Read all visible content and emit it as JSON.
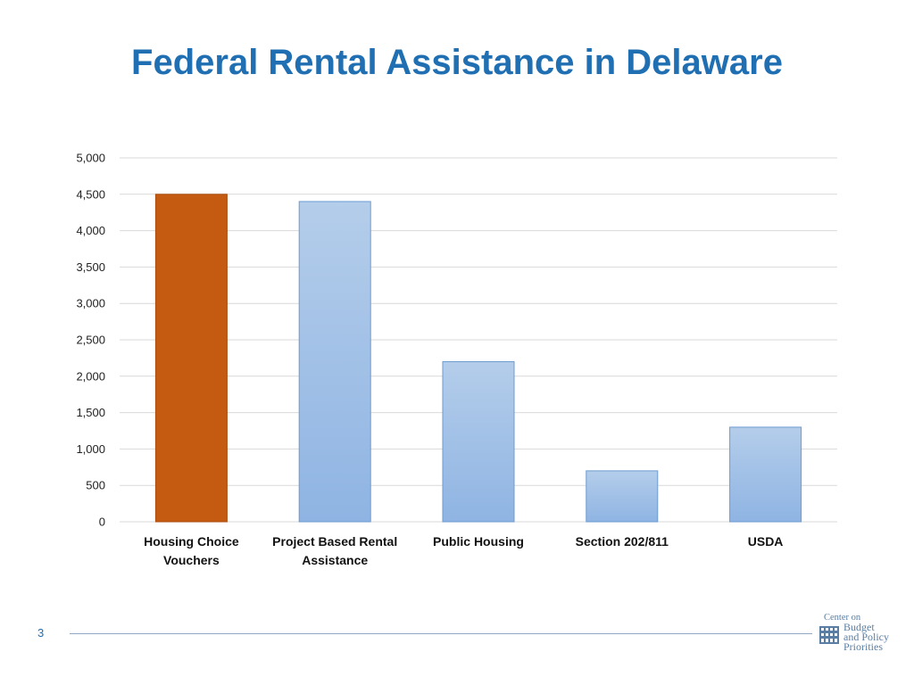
{
  "slide": {
    "title": "Federal Rental Assistance in Delaware",
    "page_number": "3",
    "logo_text": [
      "Center on",
      "Budget",
      "and Policy",
      "Priorities"
    ]
  },
  "colors": {
    "title": "#1f6fb2",
    "highlight_bar": "#c55a11",
    "bar_top": "#b4cdea",
    "bar_bottom": "#8fb4e3",
    "bar_border": "#6d9bd0",
    "grid": "#d9d9d9"
  },
  "chart_data": {
    "type": "bar",
    "title": "",
    "xlabel": "",
    "ylabel": "",
    "categories": [
      [
        "Housing Choice",
        "Vouchers"
      ],
      [
        "Project Based Rental",
        "Assistance"
      ],
      [
        "Public Housing"
      ],
      [
        "Section 202/811"
      ],
      [
        "USDA"
      ]
    ],
    "values": [
      4500,
      4400,
      2200,
      700,
      1300
    ],
    "highlight_index": 0,
    "ylim": [
      0,
      5000
    ],
    "yticks": [
      0,
      500,
      1000,
      1500,
      2000,
      2500,
      3000,
      3500,
      4000,
      4500,
      5000
    ],
    "ytick_labels": [
      "0",
      "500",
      "1,000",
      "1,500",
      "2,000",
      "2,500",
      "3,000",
      "3,500",
      "4,000",
      "4,500",
      "5,000"
    ],
    "grid": true,
    "legend": "none"
  }
}
